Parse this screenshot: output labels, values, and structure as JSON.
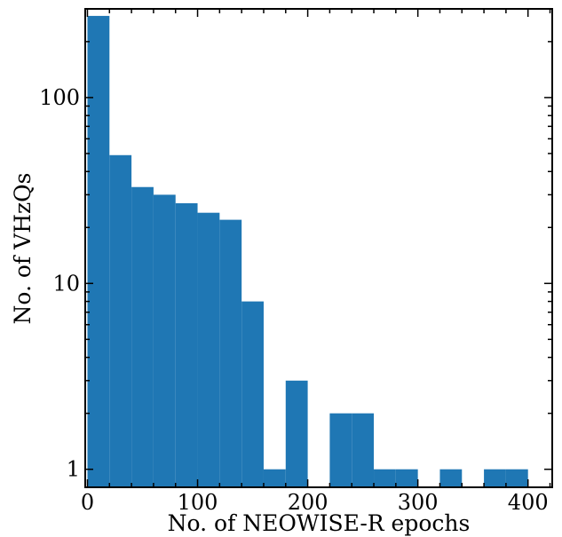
{
  "chart_data": {
    "type": "bar",
    "subtype": "histogram",
    "xlabel": "No. of NEOWISE-R epochs",
    "ylabel": "No. of VHzQs",
    "yscale": "log",
    "xlim": [
      -2,
      422
    ],
    "ylim": [
      0.8,
      300
    ],
    "grid": false,
    "color": "#1f77b4",
    "bins": [
      {
        "x0": 0,
        "x1": 20,
        "count": 275
      },
      {
        "x0": 20,
        "x1": 40,
        "count": 49
      },
      {
        "x0": 40,
        "x1": 60,
        "count": 33
      },
      {
        "x0": 60,
        "x1": 80,
        "count": 30
      },
      {
        "x0": 80,
        "x1": 100,
        "count": 27
      },
      {
        "x0": 100,
        "x1": 120,
        "count": 24
      },
      {
        "x0": 120,
        "x1": 140,
        "count": 22
      },
      {
        "x0": 140,
        "x1": 160,
        "count": 8
      },
      {
        "x0": 160,
        "x1": 180,
        "count": 1
      },
      {
        "x0": 180,
        "x1": 200,
        "count": 3
      },
      {
        "x0": 200,
        "x1": 220,
        "count": 0
      },
      {
        "x0": 220,
        "x1": 240,
        "count": 2
      },
      {
        "x0": 240,
        "x1": 260,
        "count": 2
      },
      {
        "x0": 260,
        "x1": 280,
        "count": 1
      },
      {
        "x0": 280,
        "x1": 300,
        "count": 1
      },
      {
        "x0": 300,
        "x1": 320,
        "count": 0
      },
      {
        "x0": 320,
        "x1": 340,
        "count": 1
      },
      {
        "x0": 340,
        "x1": 360,
        "count": 0
      },
      {
        "x0": 360,
        "x1": 380,
        "count": 1
      },
      {
        "x0": 380,
        "x1": 400,
        "count": 1
      }
    ],
    "xticks": [
      {
        "value": 0,
        "label": "0"
      },
      {
        "value": 100,
        "label": "100"
      },
      {
        "value": 200,
        "label": "200"
      },
      {
        "value": 300,
        "label": "300"
      },
      {
        "value": 400,
        "label": "400"
      }
    ],
    "yticks": [
      {
        "value": 1,
        "label": "1"
      },
      {
        "value": 10,
        "label": "10"
      },
      {
        "value": 100,
        "label": "100"
      }
    ]
  }
}
